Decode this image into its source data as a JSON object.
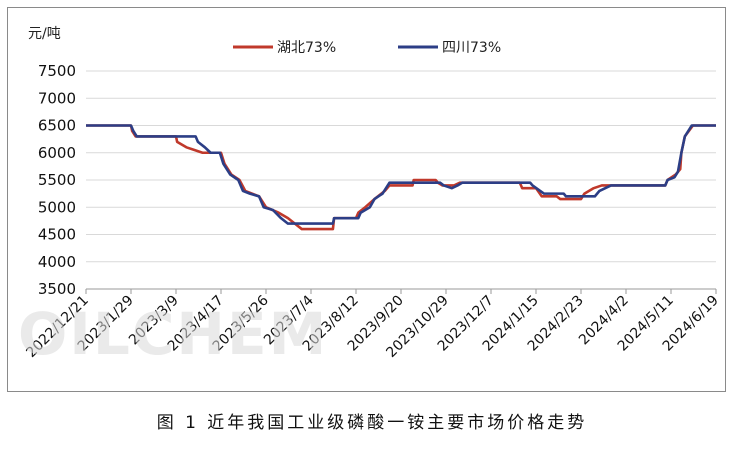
{
  "figure": {
    "caption": "图 1   近年我国工业级磷酸一铵主要市场价格走势",
    "watermark": "OILCHEM"
  },
  "chart_data": {
    "type": "line",
    "ylabel": "元/吨",
    "ylim": [
      3500,
      7500
    ],
    "yticks": [
      3500,
      4000,
      4500,
      5000,
      5500,
      6000,
      6500,
      7000,
      7500
    ],
    "x_range": [
      "2022-12-21",
      "2024-06-19"
    ],
    "xtick_labels": [
      "2022/12/21",
      "2023/1/29",
      "2023/3/9",
      "2023/4/17",
      "2023/5/26",
      "2023/7/4",
      "2023/8/12",
      "2023/9/20",
      "2023/10/29",
      "2023/12/7",
      "2024/1/15",
      "2024/2/23",
      "2024/4/2",
      "2024/5/11",
      "2024/6/19"
    ],
    "legend_position": "top-center",
    "series": [
      {
        "name": "湖北73%",
        "color": "#c0392b",
        "points": [
          [
            "2022-12-21",
            6500
          ],
          [
            "2023-01-29",
            6500
          ],
          [
            "2023-01-30",
            6400
          ],
          [
            "2023-02-02",
            6300
          ],
          [
            "2023-03-09",
            6300
          ],
          [
            "2023-03-10",
            6200
          ],
          [
            "2023-03-18",
            6100
          ],
          [
            "2023-03-25",
            6050
          ],
          [
            "2023-04-01",
            6000
          ],
          [
            "2023-04-17",
            6000
          ],
          [
            "2023-04-20",
            5800
          ],
          [
            "2023-04-26",
            5600
          ],
          [
            "2023-05-03",
            5500
          ],
          [
            "2023-05-08",
            5300
          ],
          [
            "2023-05-20",
            5200
          ],
          [
            "2023-05-26",
            5000
          ],
          [
            "2023-06-06",
            4900
          ],
          [
            "2023-06-14",
            4800
          ],
          [
            "2023-06-20",
            4700
          ],
          [
            "2023-06-26",
            4600
          ],
          [
            "2023-07-10",
            4600
          ],
          [
            "2023-07-23",
            4600
          ],
          [
            "2023-07-24",
            4800
          ],
          [
            "2023-08-12",
            4800
          ],
          [
            "2023-08-14",
            4900
          ],
          [
            "2023-08-20",
            5000
          ],
          [
            "2023-08-28",
            5150
          ],
          [
            "2023-09-06",
            5300
          ],
          [
            "2023-09-10",
            5400
          ],
          [
            "2023-09-30",
            5400
          ],
          [
            "2023-10-01",
            5500
          ],
          [
            "2023-10-20",
            5500
          ],
          [
            "2023-10-22",
            5450
          ],
          [
            "2023-10-26",
            5400
          ],
          [
            "2023-11-05",
            5400
          ],
          [
            "2023-11-10",
            5450
          ],
          [
            "2024-01-01",
            5450
          ],
          [
            "2024-01-03",
            5350
          ],
          [
            "2024-01-15",
            5350
          ],
          [
            "2024-01-20",
            5200
          ],
          [
            "2024-02-02",
            5200
          ],
          [
            "2024-02-05",
            5150
          ],
          [
            "2024-02-23",
            5150
          ],
          [
            "2024-02-26",
            5250
          ],
          [
            "2024-03-05",
            5350
          ],
          [
            "2024-03-12",
            5400
          ],
          [
            "2024-05-06",
            5400
          ],
          [
            "2024-05-08",
            5500
          ],
          [
            "2024-05-15",
            5600
          ],
          [
            "2024-05-19",
            5700
          ],
          [
            "2024-05-20",
            6000
          ],
          [
            "2024-05-23",
            6300
          ],
          [
            "2024-05-30",
            6500
          ],
          [
            "2024-06-19",
            6500
          ]
        ]
      },
      {
        "name": "四川73%",
        "color": "#2c3e86",
        "points": [
          [
            "2022-12-21",
            6500
          ],
          [
            "2023-01-29",
            6500
          ],
          [
            "2023-01-31",
            6400
          ],
          [
            "2023-02-03",
            6300
          ],
          [
            "2023-03-26",
            6300
          ],
          [
            "2023-03-28",
            6200
          ],
          [
            "2023-04-03",
            6100
          ],
          [
            "2023-04-08",
            6000
          ],
          [
            "2023-04-16",
            6000
          ],
          [
            "2023-04-19",
            5800
          ],
          [
            "2023-04-25",
            5600
          ],
          [
            "2023-05-02",
            5500
          ],
          [
            "2023-05-06",
            5300
          ],
          [
            "2023-05-12",
            5250
          ],
          [
            "2023-05-20",
            5200
          ],
          [
            "2023-05-24",
            5000
          ],
          [
            "2023-06-01",
            4950
          ],
          [
            "2023-06-08",
            4800
          ],
          [
            "2023-06-14",
            4700
          ],
          [
            "2023-07-23",
            4700
          ],
          [
            "2023-07-24",
            4800
          ],
          [
            "2023-08-14",
            4800
          ],
          [
            "2023-08-16",
            4900
          ],
          [
            "2023-08-24",
            5000
          ],
          [
            "2023-08-28",
            5150
          ],
          [
            "2023-09-04",
            5250
          ],
          [
            "2023-09-10",
            5450
          ],
          [
            "2023-10-24",
            5450
          ],
          [
            "2023-10-27",
            5400
          ],
          [
            "2023-11-03",
            5350
          ],
          [
            "2023-11-08",
            5400
          ],
          [
            "2023-11-12",
            5450
          ],
          [
            "2024-01-10",
            5450
          ],
          [
            "2024-01-12",
            5400
          ],
          [
            "2024-01-22",
            5250
          ],
          [
            "2024-02-08",
            5250
          ],
          [
            "2024-02-10",
            5200
          ],
          [
            "2024-03-06",
            5200
          ],
          [
            "2024-03-10",
            5300
          ],
          [
            "2024-03-15",
            5350
          ],
          [
            "2024-03-20",
            5400
          ],
          [
            "2024-05-06",
            5400
          ],
          [
            "2024-05-08",
            5500
          ],
          [
            "2024-05-14",
            5550
          ],
          [
            "2024-05-17",
            5650
          ],
          [
            "2024-05-20",
            6000
          ],
          [
            "2024-05-23",
            6300
          ],
          [
            "2024-05-29",
            6500
          ],
          [
            "2024-06-19",
            6500
          ]
        ]
      }
    ]
  }
}
